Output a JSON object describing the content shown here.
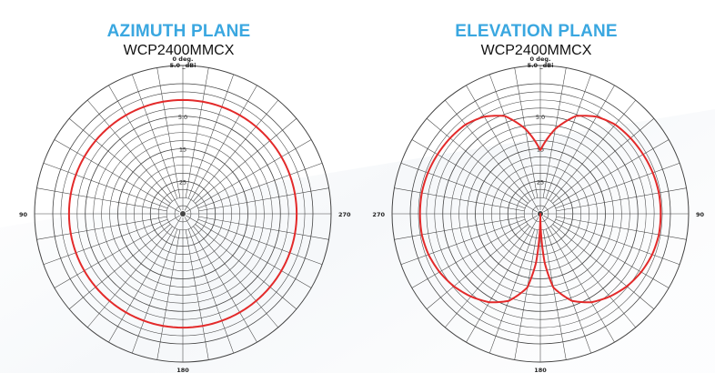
{
  "theme": {
    "title_color": "#3aa7e0",
    "trace_color": "#e32a2a",
    "grid_color": "#444444"
  },
  "chart_data": [
    {
      "type": "polar",
      "title": "AZIMUTH PLANE",
      "subtitle": "WCP2400MMCX",
      "top_label": "0 deg.",
      "scale_label": "5.0 _dBi",
      "ring_labels": [
        "5.0",
        "15",
        "25"
      ],
      "angle_labels": {
        "left": "90",
        "right": "270",
        "bottom": "180"
      },
      "rlim": [
        -35,
        5
      ],
      "grid": true,
      "series": [
        {
          "theta_deg": [
            0,
            30,
            60,
            90,
            120,
            150,
            180,
            210,
            240,
            270,
            300,
            330,
            360
          ],
          "r_dbi": [
            0,
            0,
            0,
            0,
            0,
            0,
            0,
            0,
            0,
            0,
            0,
            0,
            0
          ]
        }
      ]
    },
    {
      "type": "polar",
      "title": "ELEVATION PLANE",
      "subtitle": "WCP2400MMCX",
      "top_label": "0 deg.",
      "scale_label": "5.0 _dBi",
      "ring_labels": [
        "5.0",
        "15",
        "25"
      ],
      "angle_labels": {
        "left": "270",
        "right": "90",
        "bottom": "180"
      },
      "rlim": [
        -35,
        5
      ],
      "grid": true,
      "series": [
        {
          "theta_deg": [
            0,
            5,
            10,
            20,
            30,
            40,
            50,
            60,
            70,
            80,
            90,
            100,
            110,
            120,
            130,
            140,
            150,
            160,
            170,
            175,
            180,
            185,
            190,
            200,
            210,
            220,
            230,
            240,
            250,
            260,
            270,
            280,
            290,
            300,
            310,
            320,
            330,
            340,
            350,
            355,
            360
          ],
          "r_dbi": [
            -15.5,
            -12,
            -8.5,
            -3,
            -0.5,
            0.8,
            1.2,
            1.5,
            1.8,
            2,
            2,
            2,
            1.6,
            0.8,
            -0.3,
            -1.8,
            -3.6,
            -6.5,
            -12,
            -20,
            -35,
            -20,
            -12,
            -6.5,
            -3.6,
            -1.8,
            -0.3,
            0.8,
            1.6,
            2,
            2,
            2,
            1.8,
            1.5,
            1.2,
            0.8,
            -0.5,
            -3,
            -8.5,
            -12,
            -15.5
          ]
        }
      ]
    }
  ]
}
